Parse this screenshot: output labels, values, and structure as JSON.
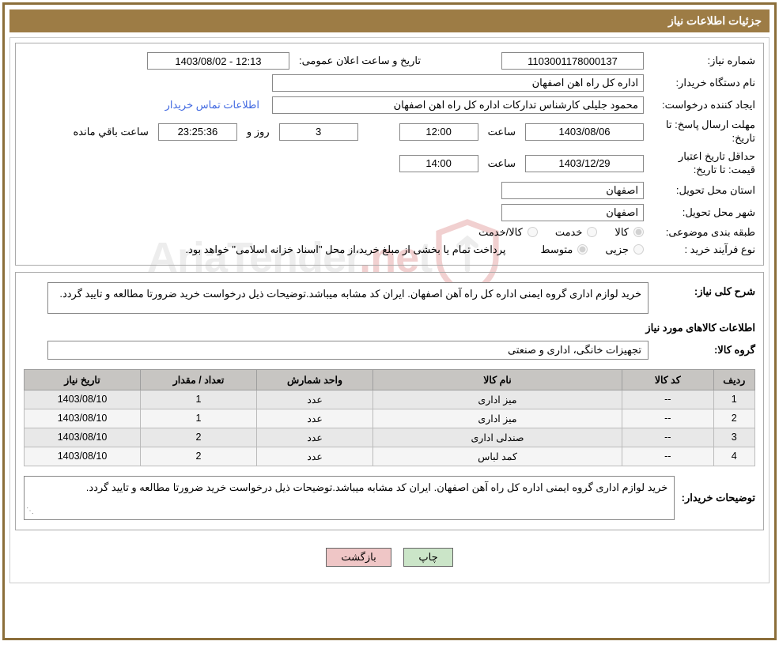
{
  "header": {
    "title": "جزئیات اطلاعات نیاز"
  },
  "fields": {
    "need_number_label": "شماره نیاز:",
    "need_number": "1103001178000137",
    "announce_dt_label": "تاریخ و ساعت اعلان عمومی:",
    "announce_dt": "12:13 - 1403/08/02",
    "buyer_org_label": "نام دستگاه خریدار:",
    "buyer_org": "اداره کل راه اهن اصفهان",
    "requester_label": "ایجاد کننده درخواست:",
    "requester": "محمود جلیلی کارشناس تدارکات اداره کل راه اهن اصفهان",
    "contact_link": "اطلاعات تماس خریدار",
    "deadline_label": "مهلت ارسال پاسخ: تا تاریخ:",
    "deadline_date": "1403/08/06",
    "time_label": "ساعت",
    "deadline_time": "12:00",
    "days_remaining": "3",
    "and_label": "روز و",
    "hours_remaining": "23:25:36",
    "remaining_label": "ساعت باقي مانده",
    "validity_label": "حداقل تاریخ اعتبار قیمت: تا تاریخ:",
    "validity_date": "1403/12/29",
    "validity_time": "14:00",
    "province_label": "استان محل تحویل:",
    "province": "اصفهان",
    "city_label": "شهر محل تحویل:",
    "city": "اصفهان",
    "category_label": "طبقه بندی موضوعی:",
    "cat_goods": "کالا",
    "cat_service": "خدمت",
    "cat_goodsservice": "کالا/خدمت",
    "process_label": "نوع فرآیند خرید :",
    "proc_minor": "جزیی",
    "proc_medium": "متوسط",
    "payment_note": "پرداخت تمام یا بخشی از مبلغ خرید،از محل \"اسناد خزانه اسلامی\" خواهد بود."
  },
  "section2": {
    "need_desc_label": "شرح کلی نیاز:",
    "need_desc": "خرید لوازم اداری گروه ایمنی اداره کل راه آهن اصفهان. ایران کد مشابه میباشد.توضیحات ذیل درخواست خرید ضرورتا مطالعه و تایید گردد.",
    "goods_info_heading": "اطلاعات کالاهای مورد نیاز",
    "goods_group_label": "گروه کالا:",
    "goods_group": "تجهیزات خانگی، اداری و صنعتی",
    "buyer_notes_label": "توضیحات خریدار:",
    "buyer_notes": "خرید لوازم اداری گروه ایمنی اداره کل راه آهن اصفهان. ایران کد مشابه میباشد.توضیحات ذیل درخواست خرید ضرورتا مطالعه و تایید گردد."
  },
  "table": {
    "headers": {
      "row": "ردیف",
      "code": "کد کالا",
      "name": "نام کالا",
      "unit": "واحد شمارش",
      "qty": "تعداد / مقدار",
      "date": "تاریخ نیاز"
    },
    "rows": [
      {
        "row": "1",
        "code": "--",
        "name": "میز اداری",
        "unit": "عدد",
        "qty": "1",
        "date": "1403/08/10"
      },
      {
        "row": "2",
        "code": "--",
        "name": "میز اداری",
        "unit": "عدد",
        "qty": "1",
        "date": "1403/08/10"
      },
      {
        "row": "3",
        "code": "--",
        "name": "صندلی اداری",
        "unit": "عدد",
        "qty": "2",
        "date": "1403/08/10"
      },
      {
        "row": "4",
        "code": "--",
        "name": "کمد لباس",
        "unit": "عدد",
        "qty": "2",
        "date": "1403/08/10"
      }
    ]
  },
  "actions": {
    "print": "چاپ",
    "back": "بازگشت"
  },
  "watermark": {
    "text_pre": "AriaTender",
    "text_accent": ".ne",
    "text_suf": "t"
  },
  "colors": {
    "brand_bg": "#9d7c45",
    "border": "#8b6e3a",
    "th_bg": "#c7c5c2",
    "link": "#4169e1",
    "btn_print": "#cbe5c8",
    "btn_back": "#efc6c6"
  }
}
